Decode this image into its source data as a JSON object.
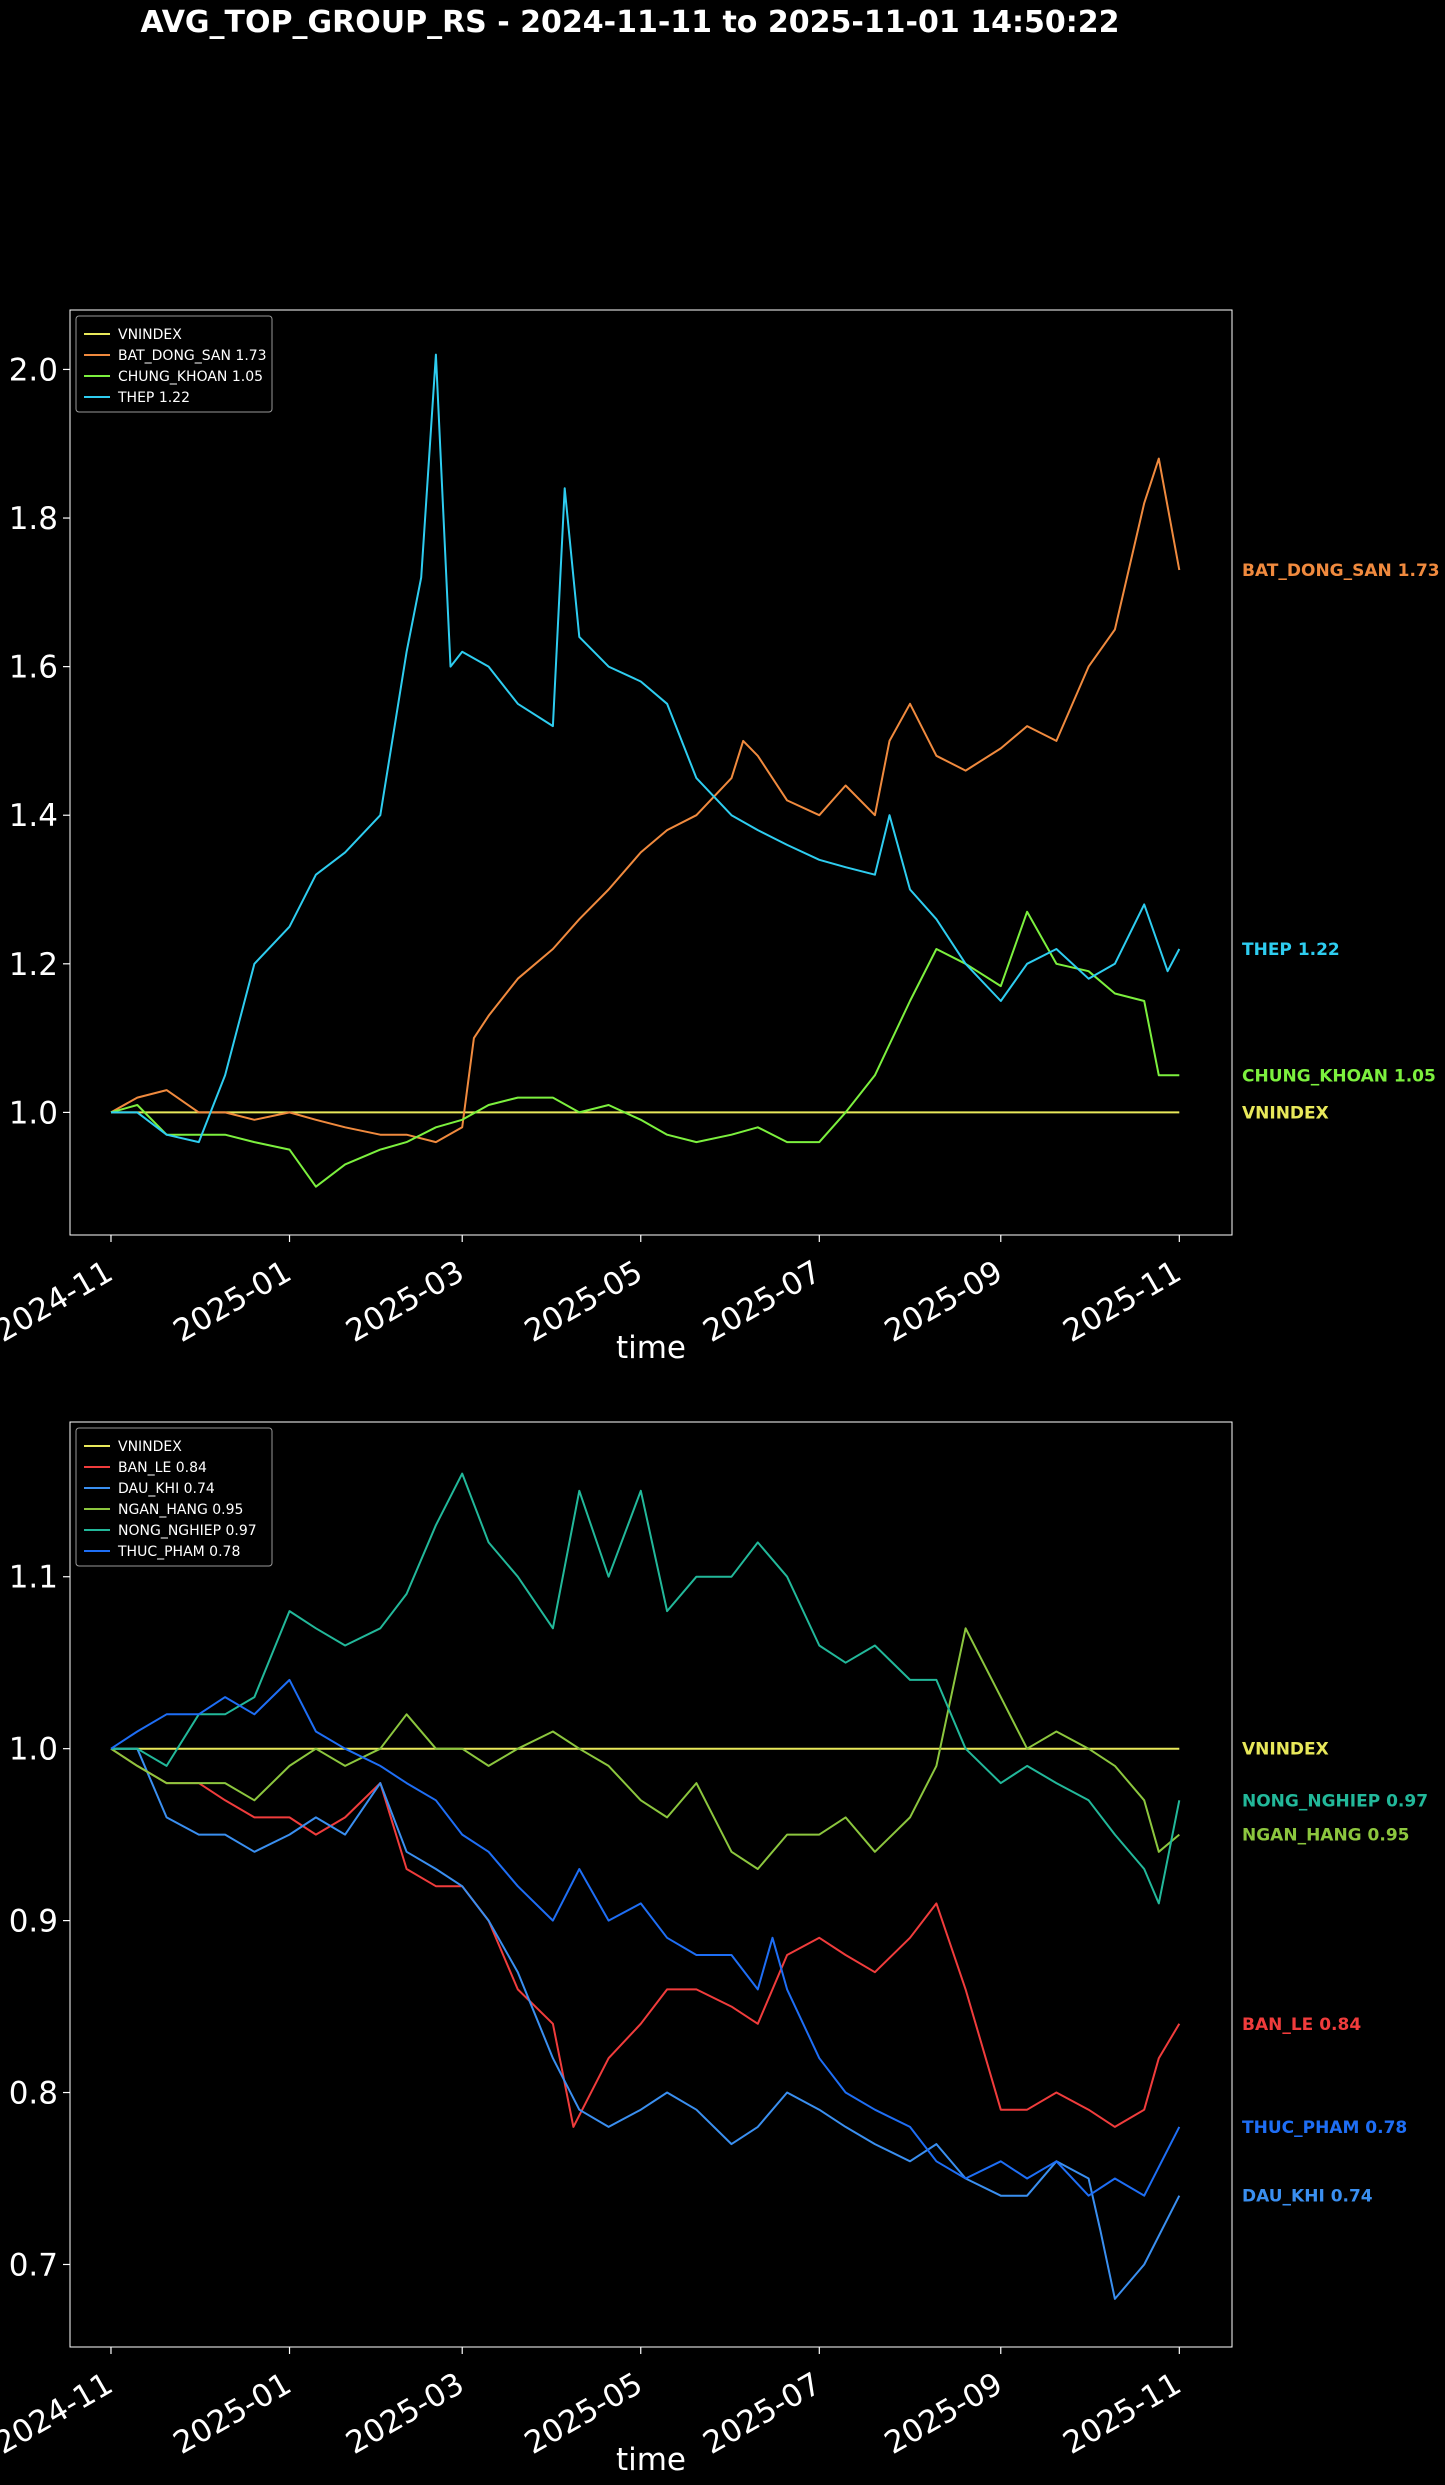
{
  "title": "AVG_TOP_GROUP_RS - 2024-11-11 to 2025-11-01 14:50:22",
  "colors": {
    "VNINDEX": "#e8e85a",
    "BAT_DONG_SAN": "#f08a3e",
    "CHUNG_KHOAN": "#7cf03e",
    "THEP": "#2ecdf0",
    "BAN_LE": "#f03c3c",
    "DAU_KHI": "#3a8ff0",
    "NGAN_HANG": "#8cc63e",
    "NONG_NGHIEP": "#22b89a",
    "THUC_PHAM": "#1e6ef5"
  },
  "chart_data": [
    {
      "type": "line",
      "xlabel": "time",
      "ylabel": "",
      "x_range": [
        "2024-10-18",
        "2025-11-19"
      ],
      "ylim": [
        0.835,
        2.08
      ],
      "yticks": [
        "1.0",
        "1.2",
        "1.4",
        "1.6",
        "1.8",
        "2.0"
      ],
      "xticks": [
        "2024-11",
        "2025-01",
        "2025-03",
        "2025-05",
        "2025-07",
        "2025-09",
        "2025-11"
      ],
      "legend_loc": "upper-left",
      "legend": [
        "VNINDEX",
        "BAT_DONG_SAN 1.73",
        "CHUNG_KHOAN 1.05",
        "THEP 1.22"
      ],
      "end_labels": [
        "BAT_DONG_SAN 1.73",
        "THEP 1.22",
        "CHUNG_KHOAN 1.05",
        "VNINDEX"
      ],
      "series": [
        {
          "key": "VNINDEX",
          "x": [
            "2024-11-01",
            "2025-11-01"
          ],
          "y": [
            1.0,
            1.0
          ]
        },
        {
          "key": "BAT_DONG_SAN",
          "x": [
            "2024-11-01",
            "2024-11-10",
            "2024-11-20",
            "2024-12-01",
            "2024-12-10",
            "2024-12-20",
            "2025-01-01",
            "2025-01-10",
            "2025-01-20",
            "2025-02-01",
            "2025-02-10",
            "2025-02-20",
            "2025-03-01",
            "2025-03-05",
            "2025-03-10",
            "2025-03-20",
            "2025-04-01",
            "2025-04-10",
            "2025-04-20",
            "2025-05-01",
            "2025-05-10",
            "2025-05-20",
            "2025-06-01",
            "2025-06-05",
            "2025-06-10",
            "2025-06-20",
            "2025-07-01",
            "2025-07-10",
            "2025-07-20",
            "2025-07-25",
            "2025-08-01",
            "2025-08-10",
            "2025-08-20",
            "2025-09-01",
            "2025-09-10",
            "2025-09-20",
            "2025-10-01",
            "2025-10-10",
            "2025-10-20",
            "2025-10-25",
            "2025-11-01"
          ],
          "y": [
            1.0,
            1.02,
            1.03,
            1.0,
            1.0,
            0.99,
            1.0,
            0.99,
            0.98,
            0.97,
            0.97,
            0.96,
            0.98,
            1.1,
            1.13,
            1.18,
            1.22,
            1.26,
            1.3,
            1.35,
            1.38,
            1.4,
            1.45,
            1.5,
            1.48,
            1.42,
            1.4,
            1.44,
            1.4,
            1.5,
            1.55,
            1.48,
            1.46,
            1.49,
            1.52,
            1.5,
            1.6,
            1.65,
            1.82,
            1.88,
            1.73
          ]
        },
        {
          "key": "CHUNG_KHOAN",
          "x": [
            "2024-11-01",
            "2024-11-10",
            "2024-11-20",
            "2024-12-01",
            "2024-12-10",
            "2024-12-20",
            "2025-01-01",
            "2025-01-10",
            "2025-01-20",
            "2025-02-01",
            "2025-02-10",
            "2025-02-20",
            "2025-03-01",
            "2025-03-10",
            "2025-03-20",
            "2025-04-01",
            "2025-04-10",
            "2025-04-20",
            "2025-05-01",
            "2025-05-10",
            "2025-05-20",
            "2025-06-01",
            "2025-06-10",
            "2025-06-20",
            "2025-07-01",
            "2025-07-10",
            "2025-07-20",
            "2025-08-01",
            "2025-08-10",
            "2025-08-20",
            "2025-09-01",
            "2025-09-10",
            "2025-09-20",
            "2025-10-01",
            "2025-10-10",
            "2025-10-20",
            "2025-10-25",
            "2025-11-01"
          ],
          "y": [
            1.0,
            1.01,
            0.97,
            0.97,
            0.97,
            0.96,
            0.95,
            0.9,
            0.93,
            0.95,
            0.96,
            0.98,
            0.99,
            1.01,
            1.02,
            1.02,
            1.0,
            1.01,
            0.99,
            0.97,
            0.96,
            0.97,
            0.98,
            0.96,
            0.96,
            1.0,
            1.05,
            1.15,
            1.22,
            1.2,
            1.17,
            1.27,
            1.2,
            1.19,
            1.16,
            1.15,
            1.05,
            1.05
          ]
        },
        {
          "key": "THEP",
          "x": [
            "2024-11-01",
            "2024-11-10",
            "2024-11-20",
            "2024-12-01",
            "2024-12-10",
            "2024-12-20",
            "2025-01-01",
            "2025-01-10",
            "2025-01-20",
            "2025-02-01",
            "2025-02-10",
            "2025-02-15",
            "2025-02-20",
            "2025-02-25",
            "2025-03-01",
            "2025-03-10",
            "2025-03-20",
            "2025-04-01",
            "2025-04-05",
            "2025-04-10",
            "2025-04-20",
            "2025-05-01",
            "2025-05-10",
            "2025-05-20",
            "2025-06-01",
            "2025-06-10",
            "2025-06-20",
            "2025-07-01",
            "2025-07-10",
            "2025-07-20",
            "2025-07-25",
            "2025-08-01",
            "2025-08-10",
            "2025-08-20",
            "2025-09-01",
            "2025-09-10",
            "2025-09-20",
            "2025-10-01",
            "2025-10-10",
            "2025-10-20",
            "2025-10-28",
            "2025-11-01"
          ],
          "y": [
            1.0,
            1.0,
            0.97,
            0.96,
            1.05,
            1.2,
            1.25,
            1.32,
            1.35,
            1.4,
            1.62,
            1.72,
            2.02,
            1.6,
            1.62,
            1.6,
            1.55,
            1.52,
            1.84,
            1.64,
            1.6,
            1.58,
            1.55,
            1.45,
            1.4,
            1.38,
            1.36,
            1.34,
            1.33,
            1.32,
            1.4,
            1.3,
            1.26,
            1.2,
            1.15,
            1.2,
            1.22,
            1.18,
            1.2,
            1.28,
            1.19,
            1.22
          ]
        }
      ]
    },
    {
      "type": "line",
      "xlabel": "time",
      "ylabel": "",
      "x_range": [
        "2024-10-18",
        "2025-11-19"
      ],
      "ylim": [
        0.652,
        1.19
      ],
      "yticks": [
        "0.7",
        "0.8",
        "0.9",
        "1.0",
        "1.1"
      ],
      "xticks": [
        "2024-11",
        "2025-01",
        "2025-03",
        "2025-05",
        "2025-07",
        "2025-09",
        "2025-11"
      ],
      "legend_loc": "upper-left",
      "legend": [
        "VNINDEX",
        "BAN_LE 0.84",
        "DAU_KHI 0.74",
        "NGAN_HANG 0.95",
        "NONG_NGHIEP 0.97",
        "THUC_PHAM 0.78"
      ],
      "end_labels": [
        "VNINDEX",
        "NONG_NGHIEP 0.97",
        "NGAN_HANG 0.95",
        "BAN_LE 0.84",
        "THUC_PHAM 0.78",
        "DAU_KHI 0.74"
      ],
      "series": [
        {
          "key": "VNINDEX",
          "x": [
            "2024-11-01",
            "2025-11-01"
          ],
          "y": [
            1.0,
            1.0
          ]
        },
        {
          "key": "BAN_LE",
          "x": [
            "2024-11-01",
            "2024-11-10",
            "2024-11-20",
            "2024-12-01",
            "2024-12-10",
            "2024-12-20",
            "2025-01-01",
            "2025-01-10",
            "2025-01-20",
            "2025-02-01",
            "2025-02-10",
            "2025-02-20",
            "2025-03-01",
            "2025-03-10",
            "2025-03-20",
            "2025-04-01",
            "2025-04-08",
            "2025-04-20",
            "2025-05-01",
            "2025-05-10",
            "2025-05-20",
            "2025-06-01",
            "2025-06-10",
            "2025-06-20",
            "2025-07-01",
            "2025-07-10",
            "2025-07-20",
            "2025-08-01",
            "2025-08-10",
            "2025-08-20",
            "2025-09-01",
            "2025-09-10",
            "2025-09-20",
            "2025-10-01",
            "2025-10-10",
            "2025-10-20",
            "2025-10-25",
            "2025-11-01"
          ],
          "y": [
            1.0,
            0.99,
            0.98,
            0.98,
            0.97,
            0.96,
            0.96,
            0.95,
            0.96,
            0.98,
            0.93,
            0.92,
            0.92,
            0.9,
            0.86,
            0.84,
            0.78,
            0.82,
            0.84,
            0.86,
            0.86,
            0.85,
            0.84,
            0.88,
            0.89,
            0.88,
            0.87,
            0.89,
            0.91,
            0.86,
            0.79,
            0.79,
            0.8,
            0.79,
            0.78,
            0.79,
            0.82,
            0.84
          ]
        },
        {
          "key": "DAU_KHI",
          "x": [
            "2024-11-01",
            "2024-11-10",
            "2024-11-20",
            "2024-12-01",
            "2024-12-10",
            "2024-12-20",
            "2025-01-01",
            "2025-01-10",
            "2025-01-20",
            "2025-02-01",
            "2025-02-10",
            "2025-02-20",
            "2025-03-01",
            "2025-03-10",
            "2025-03-20",
            "2025-04-01",
            "2025-04-10",
            "2025-04-20",
            "2025-05-01",
            "2025-05-10",
            "2025-05-20",
            "2025-06-01",
            "2025-06-10",
            "2025-06-20",
            "2025-07-01",
            "2025-07-10",
            "2025-07-20",
            "2025-08-01",
            "2025-08-10",
            "2025-08-20",
            "2025-09-01",
            "2025-09-10",
            "2025-09-20",
            "2025-10-01",
            "2025-10-05",
            "2025-10-10",
            "2025-10-20",
            "2025-11-01"
          ],
          "y": [
            1.0,
            1.0,
            0.96,
            0.95,
            0.95,
            0.94,
            0.95,
            0.96,
            0.95,
            0.98,
            0.94,
            0.93,
            0.92,
            0.9,
            0.87,
            0.82,
            0.79,
            0.78,
            0.79,
            0.8,
            0.79,
            0.77,
            0.78,
            0.8,
            0.79,
            0.78,
            0.77,
            0.76,
            0.77,
            0.75,
            0.74,
            0.74,
            0.76,
            0.75,
            0.72,
            0.68,
            0.7,
            0.74
          ]
        },
        {
          "key": "NGAN_HANG",
          "x": [
            "2024-11-01",
            "2024-11-10",
            "2024-11-20",
            "2024-12-01",
            "2024-12-10",
            "2024-12-20",
            "2025-01-01",
            "2025-01-10",
            "2025-01-20",
            "2025-02-01",
            "2025-02-10",
            "2025-02-20",
            "2025-03-01",
            "2025-03-10",
            "2025-03-20",
            "2025-04-01",
            "2025-04-10",
            "2025-04-20",
            "2025-05-01",
            "2025-05-10",
            "2025-05-20",
            "2025-06-01",
            "2025-06-10",
            "2025-06-20",
            "2025-07-01",
            "2025-07-10",
            "2025-07-20",
            "2025-08-01",
            "2025-08-10",
            "2025-08-20",
            "2025-09-01",
            "2025-09-10",
            "2025-09-20",
            "2025-10-01",
            "2025-10-10",
            "2025-10-20",
            "2025-10-25",
            "2025-11-01"
          ],
          "y": [
            1.0,
            0.99,
            0.98,
            0.98,
            0.98,
            0.97,
            0.99,
            1.0,
            0.99,
            1.0,
            1.02,
            1.0,
            1.0,
            0.99,
            1.0,
            1.01,
            1.0,
            0.99,
            0.97,
            0.96,
            0.98,
            0.94,
            0.93,
            0.95,
            0.95,
            0.96,
            0.94,
            0.96,
            0.99,
            1.07,
            1.03,
            1.0,
            1.01,
            1.0,
            0.99,
            0.97,
            0.94,
            0.95
          ]
        },
        {
          "key": "NONG_NGHIEP",
          "x": [
            "2024-11-01",
            "2024-11-10",
            "2024-11-20",
            "2024-12-01",
            "2024-12-10",
            "2024-12-20",
            "2025-01-01",
            "2025-01-10",
            "2025-01-20",
            "2025-02-01",
            "2025-02-10",
            "2025-02-20",
            "2025-03-01",
            "2025-03-10",
            "2025-03-20",
            "2025-04-01",
            "2025-04-10",
            "2025-04-20",
            "2025-05-01",
            "2025-05-10",
            "2025-05-20",
            "2025-06-01",
            "2025-06-10",
            "2025-06-20",
            "2025-07-01",
            "2025-07-10",
            "2025-07-20",
            "2025-08-01",
            "2025-08-10",
            "2025-08-20",
            "2025-09-01",
            "2025-09-10",
            "2025-09-20",
            "2025-10-01",
            "2025-10-10",
            "2025-10-20",
            "2025-10-25",
            "2025-11-01"
          ],
          "y": [
            1.0,
            1.0,
            0.99,
            1.02,
            1.02,
            1.03,
            1.08,
            1.07,
            1.06,
            1.07,
            1.09,
            1.13,
            1.16,
            1.12,
            1.1,
            1.07,
            1.15,
            1.1,
            1.15,
            1.08,
            1.1,
            1.1,
            1.12,
            1.1,
            1.06,
            1.05,
            1.06,
            1.04,
            1.04,
            1.0,
            0.98,
            0.99,
            0.98,
            0.97,
            0.95,
            0.93,
            0.91,
            0.97
          ]
        },
        {
          "key": "THUC_PHAM",
          "x": [
            "2024-11-01",
            "2024-11-10",
            "2024-11-20",
            "2024-12-01",
            "2024-12-10",
            "2024-12-20",
            "2025-01-01",
            "2025-01-10",
            "2025-01-20",
            "2025-02-01",
            "2025-02-10",
            "2025-02-20",
            "2025-03-01",
            "2025-03-10",
            "2025-03-20",
            "2025-04-01",
            "2025-04-10",
            "2025-04-20",
            "2025-05-01",
            "2025-05-10",
            "2025-05-20",
            "2025-06-01",
            "2025-06-10",
            "2025-06-15",
            "2025-06-20",
            "2025-07-01",
            "2025-07-10",
            "2025-07-20",
            "2025-08-01",
            "2025-08-10",
            "2025-08-20",
            "2025-09-01",
            "2025-09-10",
            "2025-09-20",
            "2025-10-01",
            "2025-10-10",
            "2025-10-20",
            "2025-11-01"
          ],
          "y": [
            1.0,
            1.01,
            1.02,
            1.02,
            1.03,
            1.02,
            1.04,
            1.01,
            1.0,
            0.99,
            0.98,
            0.97,
            0.95,
            0.94,
            0.92,
            0.9,
            0.93,
            0.9,
            0.91,
            0.89,
            0.88,
            0.88,
            0.86,
            0.89,
            0.86,
            0.82,
            0.8,
            0.79,
            0.78,
            0.76,
            0.75,
            0.76,
            0.75,
            0.76,
            0.74,
            0.75,
            0.74,
            0.78
          ]
        }
      ]
    }
  ]
}
